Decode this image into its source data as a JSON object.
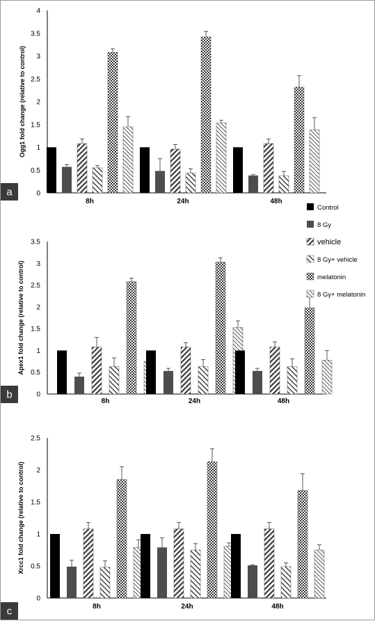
{
  "legend": [
    {
      "label": "Control",
      "fill": "black"
    },
    {
      "label": "8 Gy",
      "fill": "dark"
    },
    {
      "label": "vehicle",
      "fill": "hatch-back"
    },
    {
      "label": "8 Gy+ vehicle",
      "fill": "hatch-fwd"
    },
    {
      "label": "melatonin",
      "fill": "checker"
    },
    {
      "label": "8 Gy+ melatonin",
      "fill": "dots"
    }
  ],
  "colors": {
    "control": "#000000",
    "gy8": "#4d4d4d",
    "panel_label_bg": "#3a3a3a"
  },
  "chart_data": [
    {
      "type": "bar",
      "panel": "a",
      "ylabel": "Ogg1 fold change (relative to control)",
      "categories": [
        "8h",
        "24h",
        "48h"
      ],
      "ylim": [
        0,
        4
      ],
      "yticks": [
        "0",
        "0.5",
        "1",
        "1.5",
        "2",
        "2.5",
        "3",
        "3.5",
        "4"
      ],
      "series": [
        {
          "name": "Control",
          "values": [
            1,
            1,
            1
          ],
          "errors": [
            0,
            0,
            0
          ]
        },
        {
          "name": "8 Gy",
          "values": [
            0.57,
            0.48,
            0.38
          ],
          "errors": [
            0.05,
            0.27,
            0.02
          ]
        },
        {
          "name": "vehicle",
          "values": [
            1.08,
            0.96,
            1.08
          ],
          "errors": [
            0.1,
            0.1,
            0.1
          ]
        },
        {
          "name": "8 Gy+ vehicle",
          "values": [
            0.55,
            0.43,
            0.37
          ],
          "errors": [
            0.05,
            0.1,
            0.1
          ]
        },
        {
          "name": "melatonin",
          "values": [
            3.08,
            3.42,
            2.32
          ],
          "errors": [
            0.08,
            0.12,
            0.25
          ]
        },
        {
          "name": "8 Gy+ melatonin",
          "values": [
            1.45,
            1.53,
            1.38
          ],
          "errors": [
            0.22,
            0.06,
            0.27
          ]
        }
      ]
    },
    {
      "type": "bar",
      "panel": "b",
      "ylabel": "Apex1 fold change (relative to control)",
      "categories": [
        "8h",
        "24h",
        "48h"
      ],
      "ylim": [
        0,
        3.5
      ],
      "yticks": [
        "0",
        "0.5",
        "1",
        "1.5",
        "2",
        "2.5",
        "3",
        "3.5"
      ],
      "series": [
        {
          "name": "Control",
          "values": [
            1,
            1,
            1
          ],
          "errors": [
            0,
            0,
            0
          ]
        },
        {
          "name": "8 Gy",
          "values": [
            0.4,
            0.53,
            0.53
          ],
          "errors": [
            0.08,
            0.06,
            0.06
          ]
        },
        {
          "name": "vehicle",
          "values": [
            1.08,
            1.08,
            1.08
          ],
          "errors": [
            0.22,
            0.1,
            0.12
          ]
        },
        {
          "name": "8 Gy+ vehicle",
          "values": [
            0.63,
            0.63,
            0.63
          ],
          "errors": [
            0.2,
            0.16,
            0.18
          ]
        },
        {
          "name": "melatonin",
          "values": [
            2.58,
            3.03,
            1.98
          ],
          "errors": [
            0.08,
            0.1,
            0.25
          ]
        },
        {
          "name": "8 Gy+ melatonin",
          "values": [
            0.75,
            1.53,
            0.78
          ],
          "errors": [
            0.15,
            0.15,
            0.22
          ]
        }
      ]
    },
    {
      "type": "bar",
      "panel": "c",
      "ylabel": "Xrcc1 fold change (relative to control)",
      "categories": [
        "8h",
        "24h",
        "48h"
      ],
      "ylim": [
        0,
        2.5
      ],
      "yticks": [
        "0",
        "0.5",
        "1",
        "1.5",
        "2",
        "2.5"
      ],
      "series": [
        {
          "name": "Control",
          "values": [
            1,
            1,
            1
          ],
          "errors": [
            0,
            0,
            0
          ]
        },
        {
          "name": "8 Gy",
          "values": [
            0.49,
            0.79,
            0.51
          ],
          "errors": [
            0.1,
            0.15,
            0.01
          ]
        },
        {
          "name": "vehicle",
          "values": [
            1.08,
            1.08,
            1.08
          ],
          "errors": [
            0.1,
            0.1,
            0.1
          ]
        },
        {
          "name": "8 Gy+ vehicle",
          "values": [
            0.48,
            0.75,
            0.49
          ],
          "errors": [
            0.1,
            0.1,
            0.06
          ]
        },
        {
          "name": "melatonin",
          "values": [
            1.85,
            2.13,
            1.68
          ],
          "errors": [
            0.2,
            0.2,
            0.26
          ]
        },
        {
          "name": "8 Gy+ melatonin",
          "values": [
            0.79,
            0.81,
            0.75
          ],
          "errors": [
            0.12,
            0.05,
            0.08
          ]
        }
      ]
    }
  ]
}
